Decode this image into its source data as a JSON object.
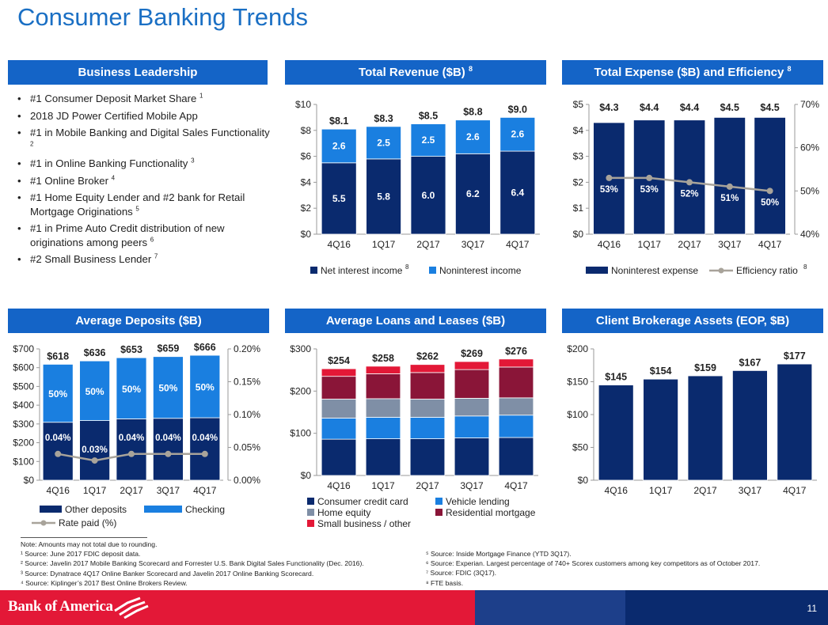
{
  "page": {
    "title": "Consumer Banking Trends",
    "page_number": "11",
    "brand": "Bank of America",
    "colors": {
      "accent_blue": "#1464c7",
      "navy": "#0a2a6e",
      "light_blue": "#1a7fe0",
      "red": "#e31837",
      "gray": "#7f8fa6",
      "maroon": "#8a1538"
    }
  },
  "leadership": {
    "title": "Business Leadership",
    "items": [
      {
        "text": "#1 Consumer Deposit Market Share",
        "note": "1"
      },
      {
        "text": "2018 JD Power Certified Mobile App",
        "note": ""
      },
      {
        "text": "#1 in Mobile Banking and Digital Sales Functionality",
        "note": "2"
      },
      {
        "text": "#1 in Online Banking Functionality",
        "note": "3"
      },
      {
        "text": "#1 Online Broker",
        "note": "4"
      },
      {
        "text": "#1 Home Equity Lender and #2 bank for Retail Mortgage Originations",
        "note": "5"
      },
      {
        "text": "#1 in Prime Auto Credit distribution of new originations among peers",
        "note": "6"
      },
      {
        "text": "#2 Small Business Lender",
        "note": "7"
      }
    ]
  },
  "footnotes": {
    "left": [
      "Note: Amounts may not total due to rounding.",
      "¹ Source: June 2017 FDIC deposit data.",
      "² Source: Javelin 2017 Mobile Banking Scorecard and Forrester U.S. Bank Digital Sales Functionality (Dec. 2016).",
      "³ Source: Dynatrace 4Q17 Online Banker Scorecard and Javelin 2017 Online Banking Scorecard.",
      "⁴ Source: Kiplinger’s 2017 Best Online Brokers Review."
    ],
    "right": [
      "⁵ Source: Inside Mortgage Finance (YTD 3Q17).",
      "⁶ Source: Experian. Largest percentage of 740+ Scorex customers among key competitors as of October 2017.",
      "⁷ Source: FDIC (3Q17).",
      "⁸ FTE basis."
    ]
  },
  "chart_data": [
    {
      "id": "revenue",
      "type": "bar",
      "title": "Total Revenue ($B)",
      "title_note": "8",
      "categories": [
        "4Q16",
        "1Q17",
        "2Q17",
        "3Q17",
        "4Q17"
      ],
      "ylim": [
        0,
        10
      ],
      "yticks": [
        "$0",
        "$2",
        "$4",
        "$6",
        "$8",
        "$10"
      ],
      "totals": [
        "$8.1",
        "$8.3",
        "$8.5",
        "$8.8",
        "$9.0"
      ],
      "series": [
        {
          "name": "Net interest income",
          "note": "8",
          "color": "#0a2a6e",
          "values": [
            5.5,
            5.8,
            6.0,
            6.2,
            6.4
          ],
          "labels": [
            "5.5",
            "5.8",
            "6.0",
            "6.2",
            "6.4"
          ]
        },
        {
          "name": "Noninterest income",
          "note": "",
          "color": "#1a7fe0",
          "values": [
            2.6,
            2.5,
            2.5,
            2.6,
            2.6
          ],
          "labels": [
            "2.6",
            "2.5",
            "2.5",
            "2.6",
            "2.6"
          ]
        }
      ]
    },
    {
      "id": "expense",
      "type": "bar",
      "title": "Total Expense ($B) and Efficiency",
      "title_note": "8",
      "categories": [
        "4Q16",
        "1Q17",
        "2Q17",
        "3Q17",
        "4Q17"
      ],
      "ylim": [
        0,
        5
      ],
      "yticks": [
        "$0",
        "$1",
        "$2",
        "$3",
        "$4",
        "$5"
      ],
      "y2lim": [
        40,
        70
      ],
      "y2ticks": [
        "40%",
        "50%",
        "60%",
        "70%"
      ],
      "totals": [
        "$4.3",
        "$4.4",
        "$4.4",
        "$4.5",
        "$4.5"
      ],
      "series": [
        {
          "name": "Noninterest expense",
          "note": "",
          "color": "#0a2a6e",
          "values": [
            4.3,
            4.4,
            4.4,
            4.5,
            4.5
          ]
        }
      ],
      "line": {
        "name": "Efficiency ratio",
        "note": "8",
        "color": "#a8a39a",
        "values": [
          53,
          53,
          52,
          51,
          50
        ],
        "labels": [
          "53%",
          "53%",
          "52%",
          "51%",
          "50%"
        ]
      }
    },
    {
      "id": "deposits",
      "type": "bar",
      "title": "Average Deposits ($B)",
      "categories": [
        "4Q16",
        "1Q17",
        "2Q17",
        "3Q17",
        "4Q17"
      ],
      "ylim": [
        0,
        700
      ],
      "yticks": [
        "$0",
        "$100",
        "$200",
        "$300",
        "$400",
        "$500",
        "$600",
        "$700"
      ],
      "y2lim": [
        0,
        0.2
      ],
      "y2ticks": [
        "0.00%",
        "0.05%",
        "0.10%",
        "0.15%",
        "0.20%"
      ],
      "totals": [
        "$618",
        "$636",
        "$653",
        "$659",
        "$666"
      ],
      "series": [
        {
          "name": "Other deposits",
          "color": "#0a2a6e",
          "values": [
            309,
            318,
            327,
            330,
            333
          ]
        },
        {
          "name": "Checking",
          "color": "#1a7fe0",
          "values": [
            309,
            318,
            326,
            329,
            333
          ],
          "labels": [
            "50%",
            "50%",
            "50%",
            "50%",
            "50%"
          ]
        }
      ],
      "line": {
        "name": "Rate paid (%)",
        "color": "#a8a39a",
        "values": [
          0.04,
          0.03,
          0.04,
          0.04,
          0.04
        ],
        "labels": [
          "0.04%",
          "0.03%",
          "0.04%",
          "0.04%",
          "0.04%"
        ]
      }
    },
    {
      "id": "loans",
      "type": "bar",
      "title": "Average Loans and Leases ($B)",
      "categories": [
        "4Q16",
        "1Q17",
        "2Q17",
        "3Q17",
        "4Q17"
      ],
      "ylim": [
        0,
        300
      ],
      "yticks": [
        "$0",
        "$100",
        "$200",
        "$300"
      ],
      "totals": [
        "$254",
        "$258",
        "$262",
        "$269",
        "$276"
      ],
      "series": [
        {
          "name": "Consumer credit card",
          "color": "#0a2a6e",
          "values": [
            86,
            87,
            87,
            89,
            90
          ]
        },
        {
          "name": "Vehicle lending",
          "color": "#1a7fe0",
          "values": [
            50,
            51,
            51,
            52,
            53
          ]
        },
        {
          "name": "Home equity",
          "color": "#7f8fa6",
          "values": [
            45,
            44,
            43,
            42,
            41
          ]
        },
        {
          "name": "Residential mortgage",
          "color": "#8a1538",
          "values": [
            54,
            59,
            63,
            68,
            73
          ]
        },
        {
          "name": "Small business / other",
          "color": "#e31837",
          "values": [
            18,
            18,
            19,
            19,
            19
          ]
        }
      ]
    },
    {
      "id": "brokerage",
      "type": "bar",
      "title": "Client Brokerage Assets (EOP, $B)",
      "categories": [
        "4Q16",
        "1Q17",
        "2Q17",
        "3Q17",
        "4Q17"
      ],
      "ylim": [
        0,
        200
      ],
      "yticks": [
        "$0",
        "$50",
        "$100",
        "$150",
        "$200"
      ],
      "totals": [
        "$145",
        "$154",
        "$159",
        "$167",
        "$177"
      ],
      "series": [
        {
          "name": "Client brokerage assets",
          "color": "#0a2a6e",
          "values": [
            145,
            154,
            159,
            167,
            177
          ]
        }
      ]
    }
  ]
}
